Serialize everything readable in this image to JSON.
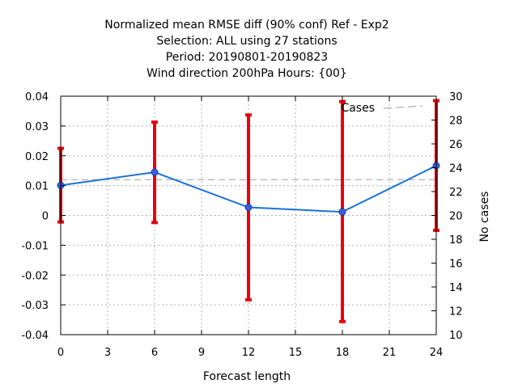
{
  "chart_data": {
    "type": "line",
    "title": [
      "Normalized mean RMSE diff (90% conf) Ref - Exp2",
      "Selection: ALL using    27 stations",
      "Period: 20190801-20190823",
      "Wind direction 200hPa   Hours: {00}"
    ],
    "xlabel": "Forecast length",
    "ylabel": "",
    "y2label": "No cases",
    "xlim": [
      0,
      24
    ],
    "ylim": [
      -0.04,
      0.04
    ],
    "y2lim": [
      10,
      30
    ],
    "xticks": [
      "0",
      "3",
      "6",
      "9",
      "12",
      "15",
      "18",
      "21",
      "24"
    ],
    "yticks": [
      "0.04",
      "0.03",
      "0.02",
      "0.01",
      "0",
      "-0.01",
      "-0.02",
      "-0.03",
      "-0.04"
    ],
    "y2ticks": [
      "30",
      "28",
      "26",
      "24",
      "22",
      "20",
      "18",
      "16",
      "14",
      "12",
      "10"
    ],
    "grid": true,
    "legend_position": "top-right",
    "series": [
      {
        "x": [
          0,
          6,
          12,
          18,
          24
        ],
        "values": [
          0.0101,
          0.0145,
          0.0027,
          0.0012,
          0.0167
        ],
        "error_low": [
          -0.0022,
          -0.0024,
          -0.0283,
          -0.0356,
          -0.005
        ],
        "error_high": [
          0.0225,
          0.0313,
          0.0337,
          0.0382,
          0.0385
        ],
        "color": "#1a73d9",
        "error_color": "#e8000b"
      },
      {
        "name": "Cases",
        "axis": "y2",
        "x": [
          0,
          6,
          12,
          18,
          24
        ],
        "values": [
          23,
          23,
          23,
          23,
          23
        ],
        "color": "#a0a0a0",
        "style": "dashed"
      }
    ]
  }
}
